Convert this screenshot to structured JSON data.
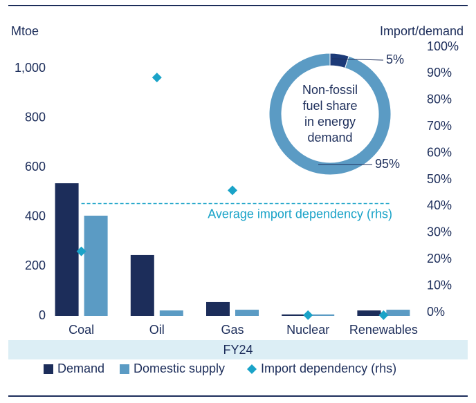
{
  "chart_data": {
    "type": "bar",
    "ylabel": "Mtoe",
    "y2label": "Import/demand",
    "xlabel": "FY24",
    "categories": [
      "Coal",
      "Oil",
      "Gas",
      "Nuclear",
      "Renewables"
    ],
    "series": [
      {
        "name": "Demand",
        "color": "#1c2d5a",
        "values": [
          536,
          246,
          56,
          6,
          22
        ]
      },
      {
        "name": "Domestic supply",
        "color": "#5b9bc4",
        "values": [
          405,
          22,
          25,
          6,
          25
        ]
      },
      {
        "name": "Import dependency (rhs)",
        "color": "#1aa3c8",
        "type": "scatter",
        "axis": "y2",
        "values": [
          23,
          88.5,
          46,
          -1,
          -1
        ]
      }
    ],
    "ylim": [
      0,
      1000
    ],
    "yticks": [
      0,
      200,
      400,
      600,
      800,
      {
        "value": 1000,
        "label": "1,000"
      }
    ],
    "y2lim": [
      0,
      100
    ],
    "y2ticks": [
      {
        "value": 0,
        "label": "0%"
      },
      {
        "value": 10,
        "label": "10%"
      },
      {
        "value": 20,
        "label": "20%"
      },
      {
        "value": 30,
        "label": "30%"
      },
      {
        "value": 40,
        "label": "40%"
      },
      {
        "value": 50,
        "label": "50%"
      },
      {
        "value": 60,
        "label": "60%"
      },
      {
        "value": 70,
        "label": "70%"
      },
      {
        "value": 80,
        "label": "80%"
      },
      {
        "value": 90,
        "label": "90%"
      },
      {
        "value": 100,
        "label": "100%"
      }
    ],
    "reference_line": {
      "value": 41,
      "axis": "y2",
      "label": "Average import dependency (rhs)",
      "color": "#1aa3c8"
    },
    "inset": {
      "type": "pie",
      "center_text": [
        "Non-fossil",
        "fuel share",
        "in energy",
        "demand"
      ],
      "values": [
        5,
        95
      ],
      "value_labels": [
        "5%",
        "95%"
      ],
      "colors": [
        "#1c3a78",
        "#5b9bc4"
      ]
    }
  }
}
